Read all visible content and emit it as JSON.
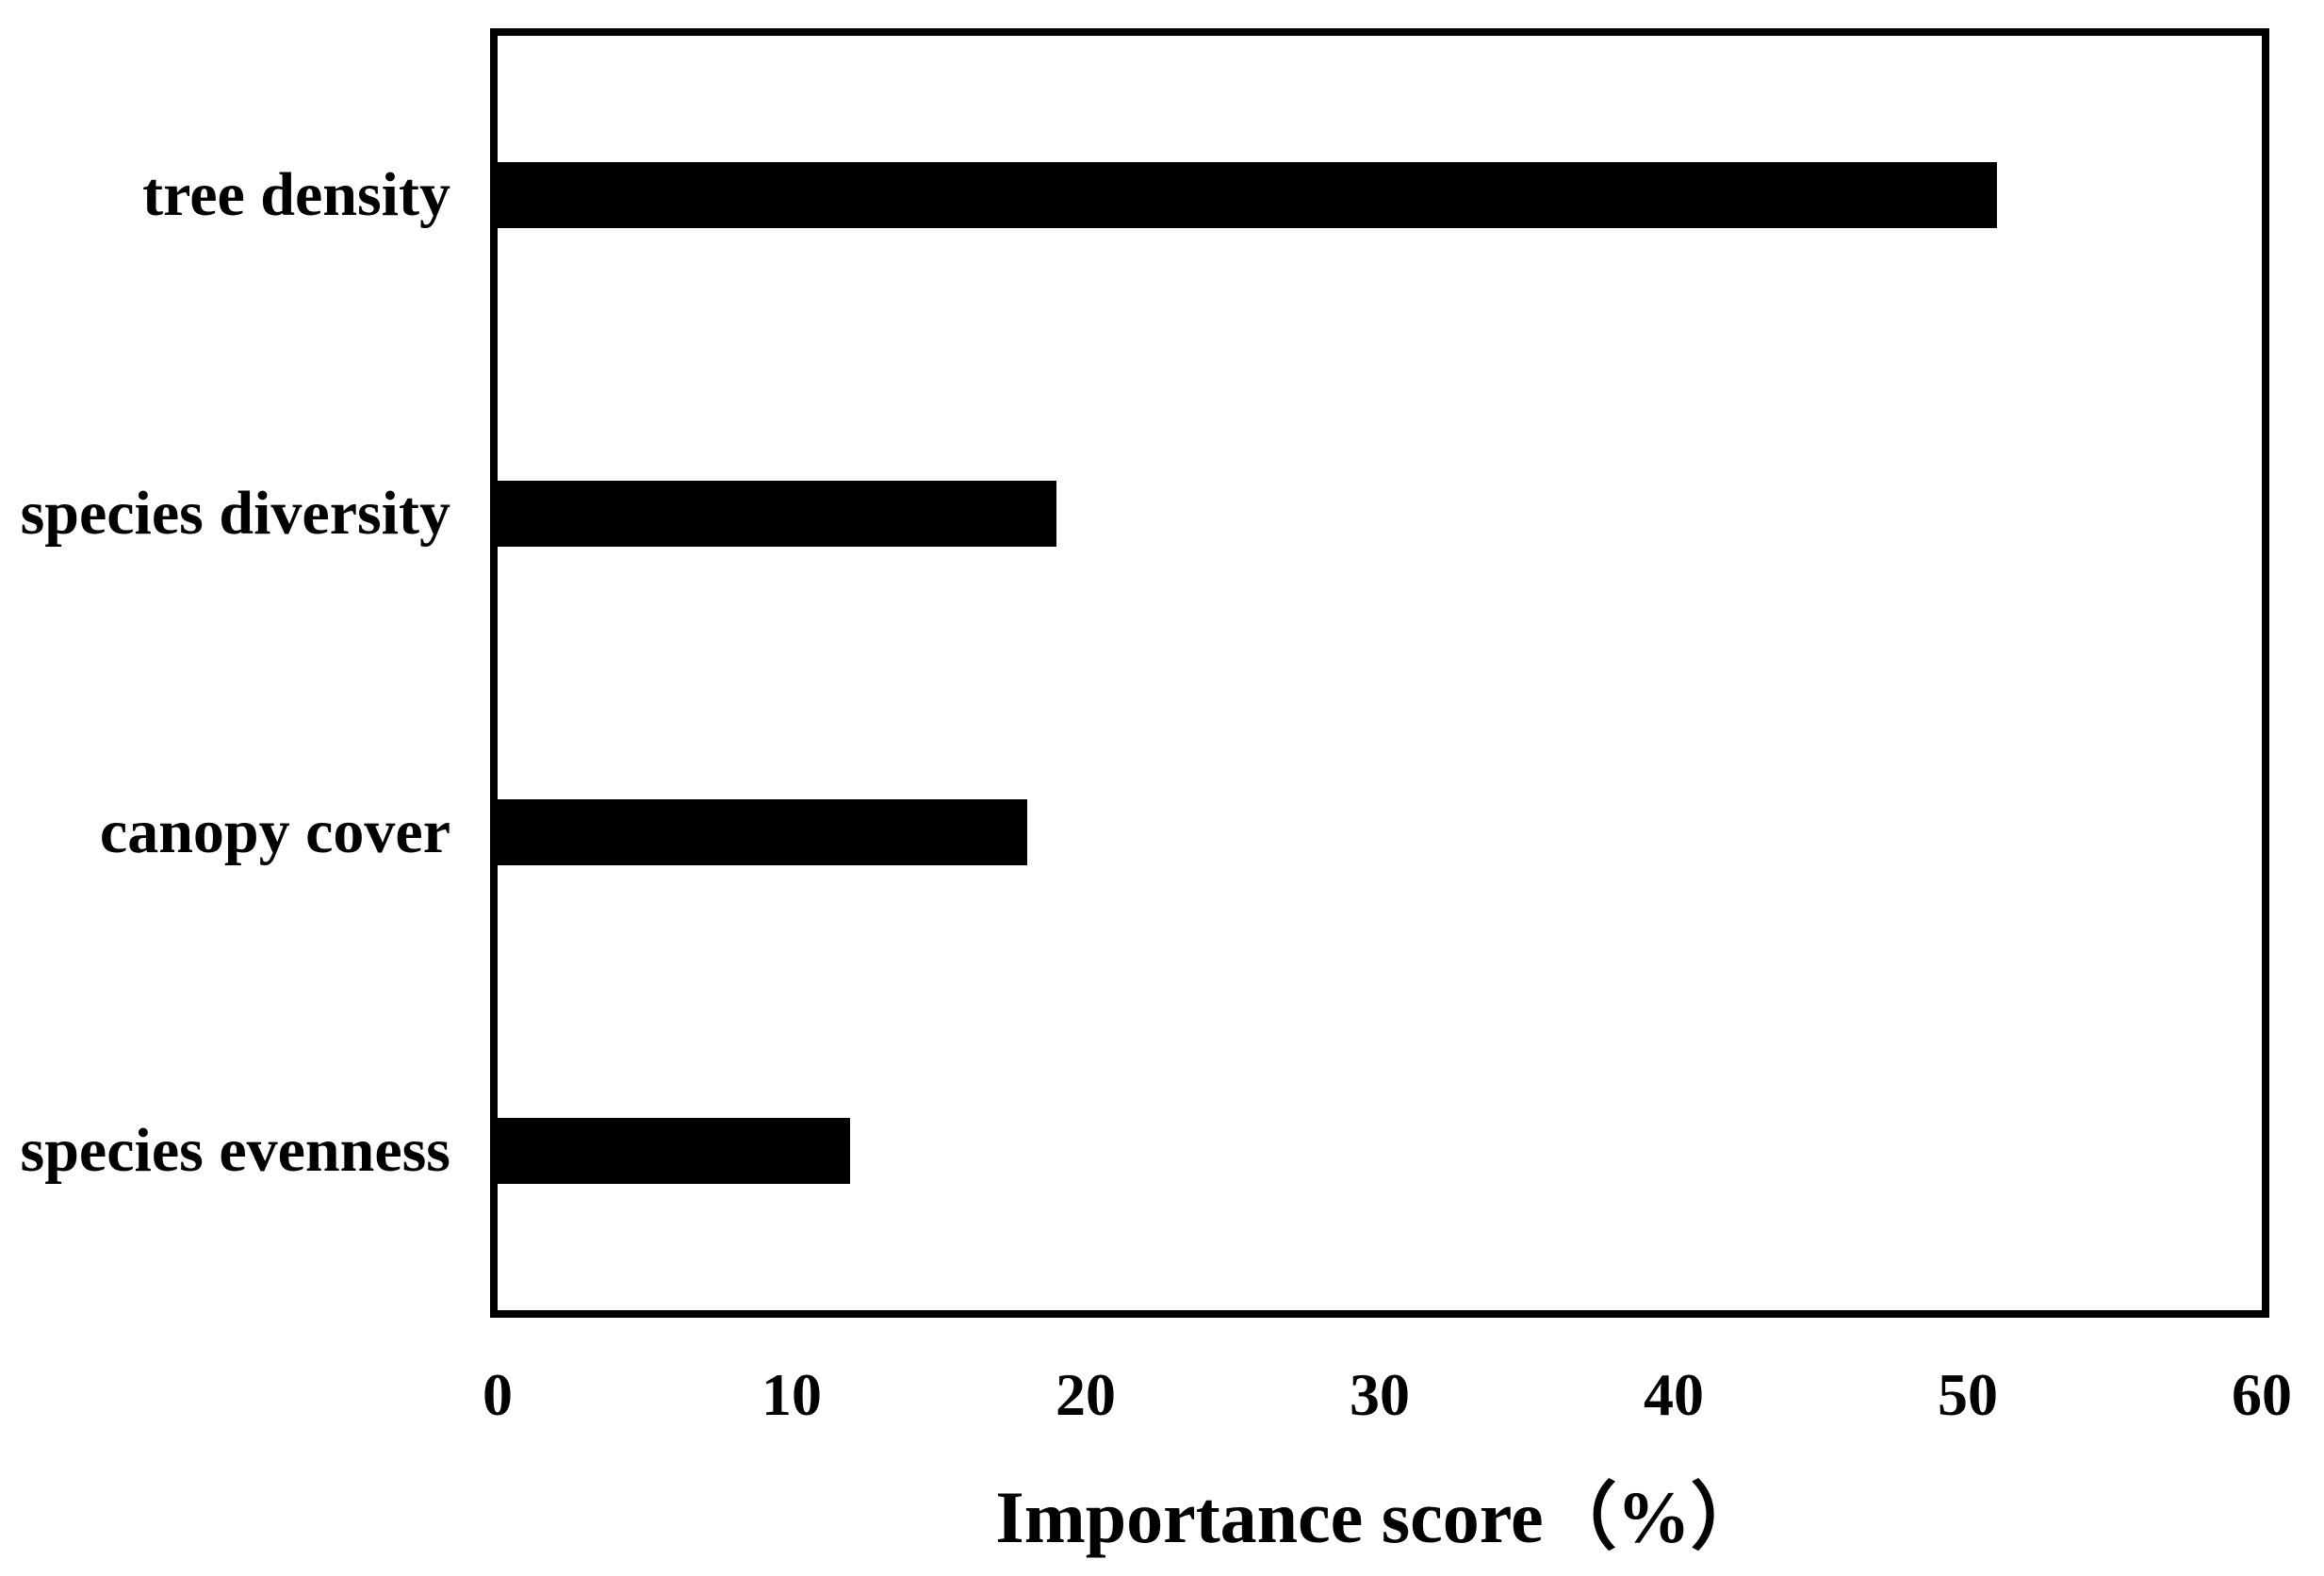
{
  "chart_data": {
    "type": "bar",
    "orientation": "horizontal",
    "title": "",
    "xlabel": "Importance score（%）",
    "ylabel": "",
    "categories": [
      "tree density",
      "species diversity",
      "canopy cover",
      "species evenness"
    ],
    "values": [
      51,
      19,
      18,
      12
    ],
    "xlim": [
      0,
      60
    ],
    "xticks": [
      0,
      10,
      20,
      30,
      40,
      50,
      60
    ],
    "grid": false,
    "legend": false,
    "bar_color": "#000000",
    "border_color": "#000000",
    "background_color": "#ffffff"
  }
}
